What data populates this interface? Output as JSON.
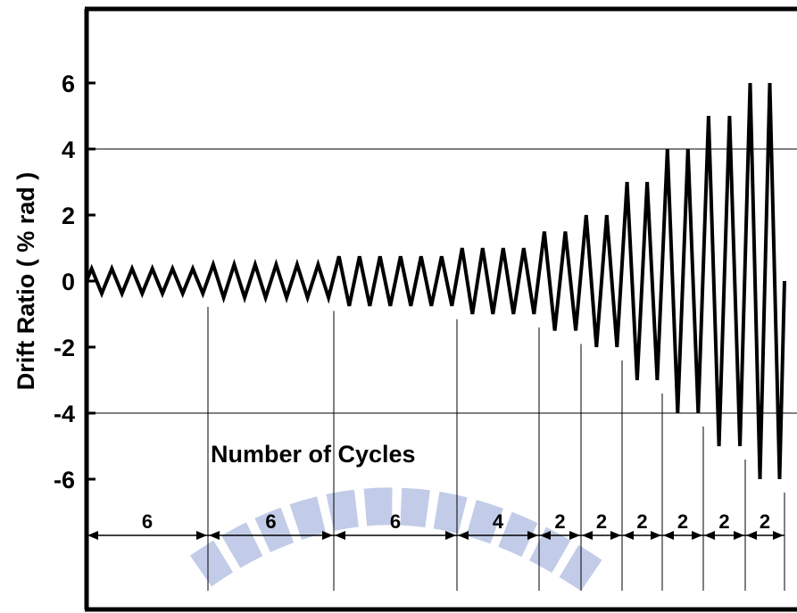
{
  "chart_data": {
    "type": "line",
    "title": "",
    "xlabel": "",
    "ylabel": "Drift Ratio ( % rad )",
    "ylim": [
      -8,
      8
    ],
    "yticks": [
      6,
      4,
      2,
      0,
      -2,
      -4,
      -6
    ],
    "gridlines_y": [
      4,
      -4
    ],
    "annotation": "Number of Cycles",
    "groups": [
      {
        "amplitude": 0.375,
        "cycles": 6,
        "label": "6"
      },
      {
        "amplitude": 0.5,
        "cycles": 6,
        "label": "6"
      },
      {
        "amplitude": 0.75,
        "cycles": 6,
        "label": "6"
      },
      {
        "amplitude": 1.0,
        "cycles": 4,
        "label": "4"
      },
      {
        "amplitude": 1.5,
        "cycles": 2,
        "label": "2"
      },
      {
        "amplitude": 2.0,
        "cycles": 2,
        "label": "2"
      },
      {
        "amplitude": 3.0,
        "cycles": 2,
        "label": "2"
      },
      {
        "amplitude": 4.0,
        "cycles": 2,
        "label": "2"
      },
      {
        "amplitude": 5.0,
        "cycles": 2,
        "label": "2"
      },
      {
        "amplitude": 6.0,
        "cycles": 2,
        "label": "2"
      }
    ],
    "line_color": "#000000",
    "watermark_color": "#8fa3d6"
  }
}
